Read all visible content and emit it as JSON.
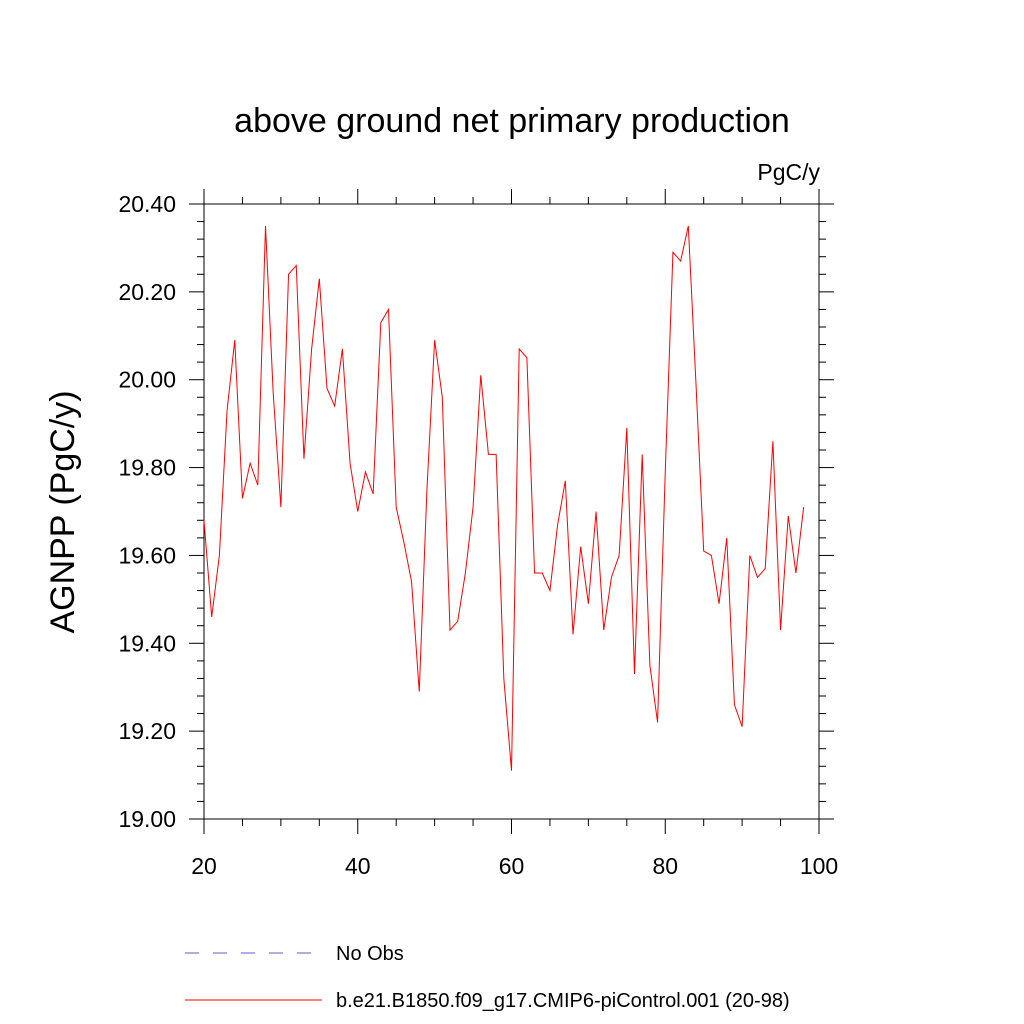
{
  "chart_data": {
    "type": "line",
    "title": "above ground net primary production",
    "units_label": "PgC/y",
    "xlabel": "",
    "ylabel": "AGNPP  (PgC/y)",
    "xlim": [
      20,
      100
    ],
    "ylim": [
      19.0,
      20.4
    ],
    "x_ticks": [
      20,
      40,
      60,
      80,
      100
    ],
    "x_tick_labels": [
      "20",
      "40",
      "60",
      "80",
      "100"
    ],
    "y_ticks": [
      19.0,
      19.2,
      19.4,
      19.6,
      19.8,
      20.0,
      20.2,
      20.4
    ],
    "y_tick_labels": [
      "19.00",
      "19.20",
      "19.40",
      "19.60",
      "19.80",
      "20.00",
      "20.20",
      "20.40"
    ],
    "grid": false,
    "legend_position": "bottom",
    "series": [
      {
        "name": "No Obs",
        "style": "dashed",
        "color": "#6a5acd",
        "x": [],
        "values": []
      },
      {
        "name": "b.e21.B1850.f09_g17.CMIP6-piControl.001 (20-98)",
        "style": "solid",
        "color": "#ff0000",
        "x": [
          20,
          21,
          22,
          23,
          24,
          25,
          26,
          27,
          28,
          29,
          30,
          31,
          32,
          33,
          34,
          35,
          36,
          37,
          38,
          39,
          40,
          41,
          42,
          43,
          44,
          45,
          46,
          47,
          48,
          49,
          50,
          51,
          52,
          53,
          54,
          55,
          56,
          57,
          58,
          59,
          60,
          61,
          62,
          63,
          64,
          65,
          66,
          67,
          68,
          69,
          70,
          71,
          72,
          73,
          74,
          75,
          76,
          77,
          78,
          79,
          80,
          81,
          82,
          83,
          84,
          85,
          86,
          87,
          88,
          89,
          90,
          91,
          92,
          93,
          94,
          95,
          96,
          97,
          98
        ],
        "values": [
          19.68,
          19.46,
          19.6,
          19.93,
          20.09,
          19.73,
          19.81,
          19.76,
          20.35,
          19.97,
          19.71,
          20.24,
          20.26,
          19.82,
          20.07,
          20.23,
          19.98,
          19.94,
          20.07,
          19.81,
          19.7,
          19.79,
          19.74,
          20.13,
          20.16,
          19.71,
          19.63,
          19.54,
          19.29,
          19.75,
          20.09,
          19.96,
          19.43,
          19.45,
          19.56,
          19.71,
          20.01,
          19.83,
          19.83,
          19.32,
          19.11,
          20.07,
          20.05,
          19.56,
          19.56,
          19.52,
          19.67,
          19.77,
          19.42,
          19.62,
          19.49,
          19.7,
          19.43,
          19.55,
          19.6,
          19.89,
          19.33,
          19.83,
          19.35,
          19.22,
          19.79,
          20.29,
          20.27,
          20.35,
          19.99,
          19.61,
          19.6,
          19.49,
          19.64,
          19.26,
          19.21,
          19.6,
          19.55,
          19.57,
          19.86,
          19.43,
          19.69,
          19.56,
          19.71
        ]
      }
    ]
  }
}
